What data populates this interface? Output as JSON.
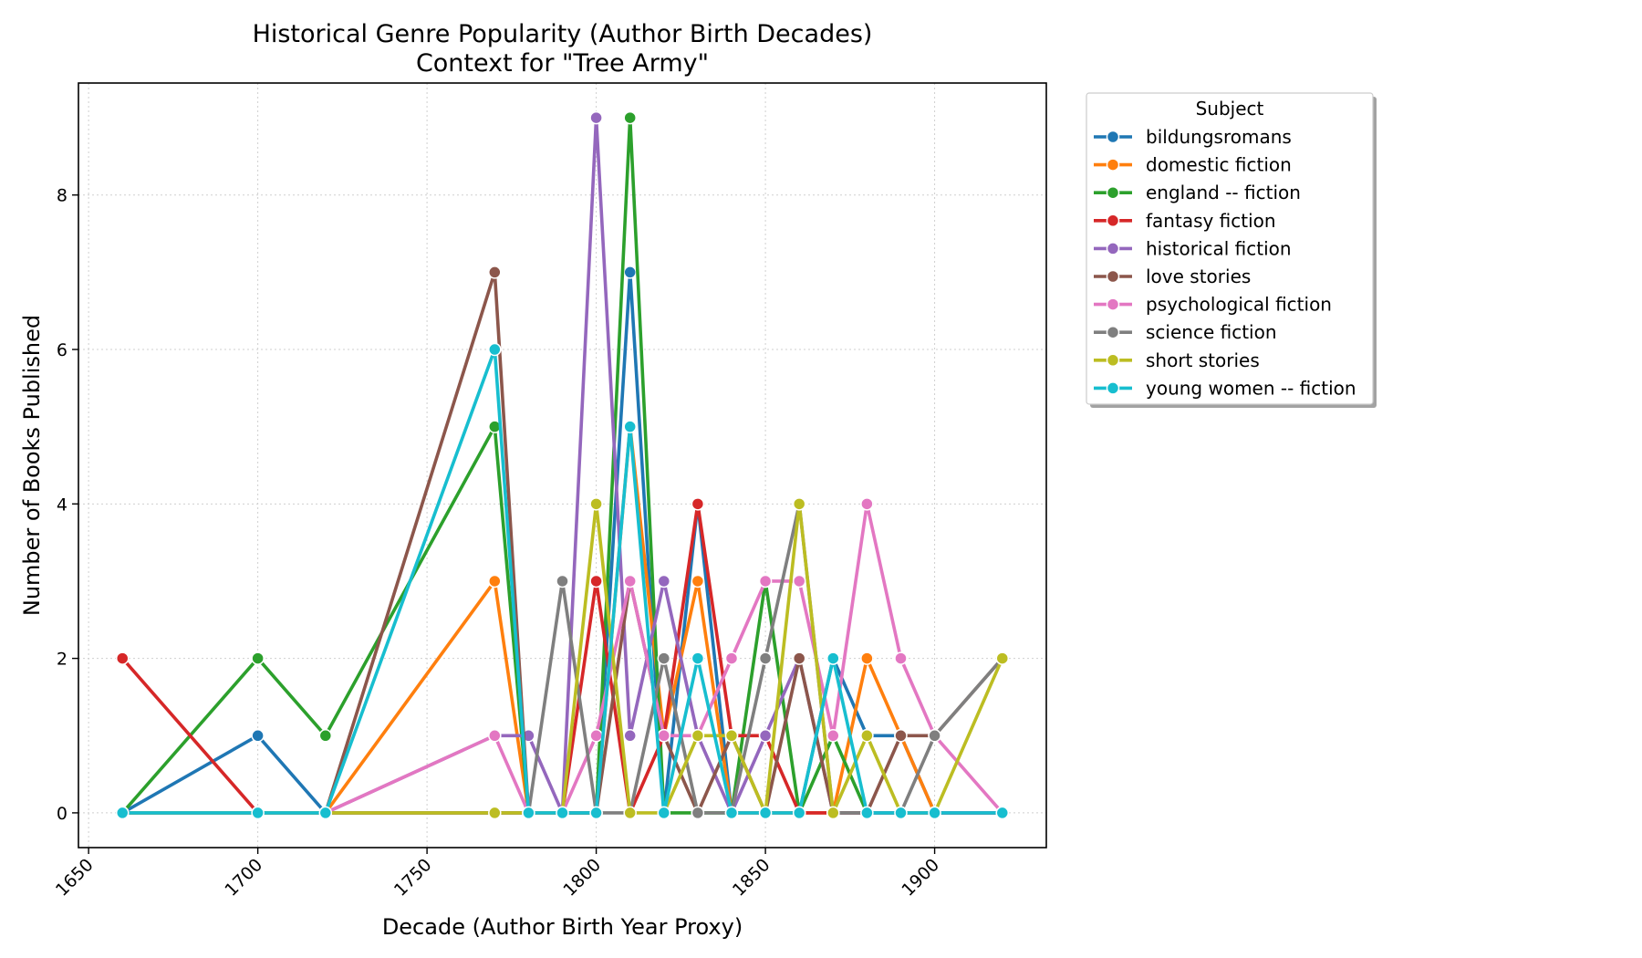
{
  "chart_data": {
    "type": "line",
    "title": "Historical Genre Popularity (Author Birth Decades)",
    "subtitle": "Context for \"Tree Army\"",
    "xlabel": "Decade (Author Birth Year Proxy)",
    "ylabel": "Number of Books Published",
    "xlim": [
      1647,
      1933
    ],
    "ylim": [
      -0.45,
      9.45
    ],
    "xticks": [
      "1650",
      "1700",
      "1750",
      "1800",
      "1850",
      "1900"
    ],
    "yticks": [
      "0",
      "2",
      "4",
      "6",
      "8"
    ],
    "grid": true,
    "legend_title": "Subject",
    "legend_position": "outside-right",
    "x": [
      1660,
      1700,
      1720,
      1770,
      1780,
      1790,
      1800,
      1810,
      1820,
      1830,
      1840,
      1850,
      1860,
      1870,
      1880,
      1890,
      1900,
      1920
    ],
    "series": [
      {
        "name": "bildungsromans",
        "color": "#1f77b4",
        "values": [
          0,
          1,
          0,
          0,
          0,
          0,
          0,
          7,
          0,
          4,
          0,
          0,
          0,
          2,
          1,
          1,
          0,
          0
        ]
      },
      {
        "name": "domestic fiction",
        "color": "#ff7f0e",
        "values": [
          0,
          0,
          0,
          3,
          0,
          0,
          0,
          5,
          1,
          3,
          0,
          0,
          0,
          0,
          2,
          1,
          0,
          0
        ]
      },
      {
        "name": "england -- fiction",
        "color": "#2ca02c",
        "values": [
          0,
          2,
          1,
          5,
          0,
          0,
          0,
          9,
          0,
          0,
          0,
          3,
          0,
          1,
          0,
          0,
          0,
          0
        ]
      },
      {
        "name": "fantasy fiction",
        "color": "#d62728",
        "values": [
          2,
          0,
          0,
          0,
          0,
          0,
          3,
          0,
          1,
          4,
          1,
          1,
          0,
          0,
          0,
          0,
          0,
          0
        ]
      },
      {
        "name": "historical fiction",
        "color": "#9467bd",
        "values": [
          0,
          0,
          0,
          1,
          1,
          0,
          9,
          1,
          3,
          1,
          0,
          1,
          2,
          0,
          0,
          0,
          0,
          0
        ]
      },
      {
        "name": "love stories",
        "color": "#8c564b",
        "values": [
          0,
          0,
          0,
          7,
          0,
          0,
          0,
          3,
          1,
          0,
          1,
          0,
          2,
          0,
          0,
          1,
          1,
          2
        ]
      },
      {
        "name": "psychological fiction",
        "color": "#e377c2",
        "values": [
          0,
          0,
          0,
          1,
          0,
          0,
          1,
          3,
          1,
          1,
          2,
          3,
          3,
          1,
          4,
          2,
          1,
          0
        ]
      },
      {
        "name": "science fiction",
        "color": "#7f7f7f",
        "values": [
          0,
          0,
          0,
          0,
          0,
          3,
          0,
          0,
          2,
          0,
          0,
          2,
          4,
          0,
          0,
          0,
          1,
          2
        ]
      },
      {
        "name": "short stories",
        "color": "#bcbd22",
        "values": [
          0,
          0,
          0,
          0,
          0,
          0,
          4,
          0,
          0,
          1,
          1,
          0,
          4,
          0,
          1,
          0,
          0,
          2
        ]
      },
      {
        "name": "young women -- fiction",
        "color": "#17becf",
        "values": [
          0,
          0,
          0,
          6,
          0,
          0,
          0,
          5,
          0,
          2,
          0,
          0,
          0,
          2,
          0,
          0,
          0,
          0
        ]
      }
    ]
  }
}
